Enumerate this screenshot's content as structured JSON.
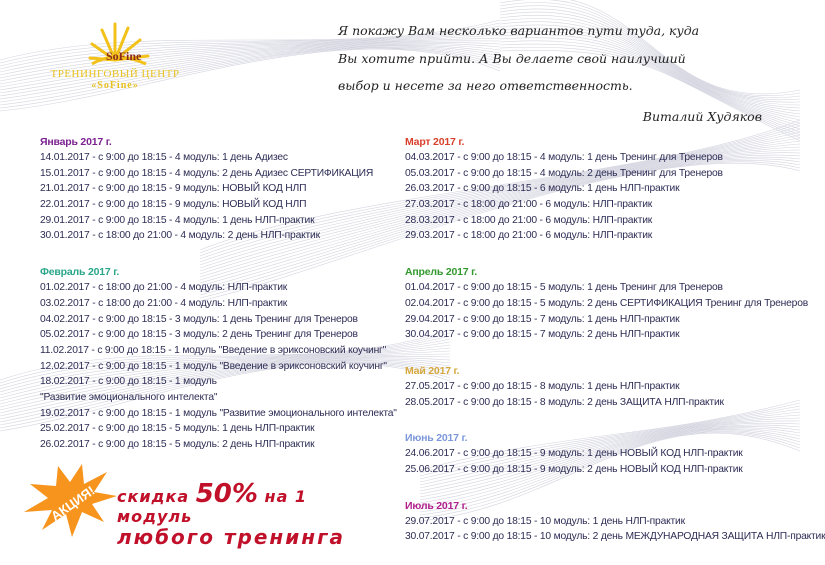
{
  "logo": {
    "brand": "SoFine",
    "line1": "ТРЕНИНГОВЫЙ ЦЕНТР",
    "line2": "«SoFine»"
  },
  "quote": {
    "lines": [
      "Я покажу Вам несколько вариантов пути туда, куда",
      "Вы хотите прийти. А Вы делаете свой наилучший",
      "выбор и несете за него ответственность."
    ],
    "author": "Виталий Худяков"
  },
  "colors": {
    "text": "#2d2d55",
    "january": "#7b2290",
    "february": "#2aa58a",
    "march": "#d8402c",
    "april": "#33992e",
    "may": "#d6a83c",
    "june": "#7c98da",
    "july": "#b0208c",
    "promo": "#c0102a",
    "star": "#f7941d"
  },
  "left": [
    {
      "title": "Январь 2017 г.",
      "color": "#7b2290",
      "rows": [
        "14.01.2017 - с 9:00 до 18:15  - 4 модуль: 1 день Адизес",
        "15.01.2017 - с 9:00 до 18:15  - 4 модуль: 2 день Адизес СЕРТИФИКАЦИЯ",
        "21.01.2017 - с 9:00 до 18:15 - 9 модуль: НОВЫЙ КОД НЛП",
        "22.01.2017 - с 9:00 до 18:15 - 9 модуль: НОВЫЙ КОД НЛП",
        "29.01.2017 - с 9:00 до 18:15 -  4 модуль: 1 день НЛП-практик",
        "30.01.2017 - с 18:00 до 21:00  - 4 модуль: 2 день НЛП-практик"
      ]
    },
    {
      "title": "Февраль 2017 г.",
      "color": "#2aa58a",
      "rows": [
        "01.02.2017 - с 18:00 до 21:00  - 4 модуль: НЛП-практик",
        "03.02.2017 - с 18:00 до 21:00 - 4 модуль: НЛП-практик",
        "04.02.2017 - с 9:00 до 18:15 -  3 модуль: 1 день Тренинг для Тренеров",
        "05.02.2017 - с 9:00 до 18:15 -  3 модуль: 2 день Тренинг для Тренеров",
        "11.02.2017 - с 9:00 до 18:15 - 1 модуль \"Введение в эриксоновский коучинг\"",
        "12.02.2017 - с 9:00 до 18:15 - 1 модуль \"Введение в эриксоновский коучинг\"",
        "18.02.2017 - с 9:00 до 18:15 - 1 модуль",
        "\"Развитие эмоционального интелекта\"",
        "19.02.2017 - с 9:00 до 18:15 - 1 модуль \"Развитие эмоционального интелекта\"",
        "25.02.2017 - с 9:00 до 18:15 -  5 модуль: 1 день НЛП-практик",
        "26.02.2017 - с 9:00 до 18:15 -  5 модуль: 2 день НЛП-практик"
      ]
    }
  ],
  "right": [
    {
      "title": "Март 2017 г.",
      "color": "#d8402c",
      "rows": [
        "04.03.2017 - с 9:00 до 18:15 -  4 модуль: 1 день Тренинг для Тренеров",
        "05.03.2017 - с 9:00 до 18:15 -  4 модуль: 2 день Тренинг для Тренеров",
        "26.03.2017 - с 9:00 до 18:15 -  6 модуль: 1 день НЛП-практик",
        "27.03.2017 - с 18:00 до 21:00  - 6 модуль: НЛП-практик",
        "28.03.2017 - с 18:00 до 21:00  - 6 модуль: НЛП-практик",
        "29.03.2017 - с 18:00 до 21:00  - 6 модуль: НЛП-практик"
      ]
    },
    {
      "title": "Апрель 2017 г.",
      "color": "#33992e",
      "rows": [
        "01.04.2017 - с 9:00 до 18:15 -  5 модуль: 1 день Тренинг для Тренеров",
        "02.04.2017 - с 9:00 до 18:15 -  5 модуль: 2 день СЕРТИФИКАЦИЯ Тренинг для Тренеров",
        "29.04.2017 - с 9:00 до 18:15 -  7 модуль: 1 день НЛП-практик",
        "30.04.2017 - с 9:00 до 18:15 -  7 модуль: 2 день НЛП-практик"
      ]
    },
    {
      "title": "Май 2017 г.",
      "color": "#d6a83c",
      "rows": [
        "27.05.2017 - с 9:00 до 18:15 -  8 модуль: 1 день НЛП-практик",
        "28.05.2017 - с 9:00 до 18:15 -  8 модуль: 2 день ЗАЩИТА НЛП-практик"
      ]
    },
    {
      "title": "Июнь 2017 г.",
      "color": "#7c98da",
      "rows": [
        "24.06.2017 - с 9:00 до 18:15 -  9 модуль: 1 день НОВЫЙ КОД НЛП-практик",
        "25.06.2017 - с 9:00 до 18:15 -  9 модуль: 2 день НОВЫЙ КОД НЛП-практик"
      ]
    },
    {
      "title": "Июль 2017 г.",
      "color": "#b0208c",
      "rows": [
        "29.07.2017 - с 9:00 до 18:15 -  10 модуль: 1 день НЛП-практик",
        "30.07.2017 - с 9:00 до 18:15 -  10 модуль: 2 день МЕЖДУНАРОДНАЯ ЗАЩИТА НЛП-практик"
      ]
    }
  ],
  "promo": {
    "badge": "АКЦИЯ!",
    "pre": "скидка ",
    "percent": "50%",
    "post": " на 1 модуль",
    "line2": "любого тренинга"
  }
}
